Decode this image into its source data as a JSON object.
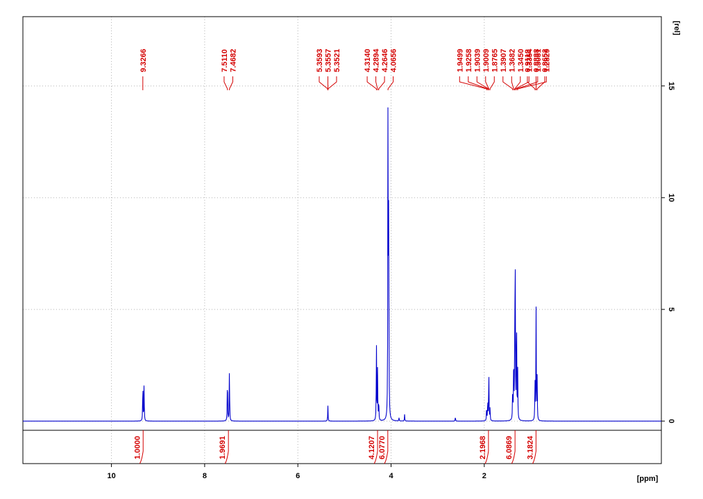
{
  "chart_data": {
    "type": "line",
    "title": "",
    "xlabel": "[ppm]",
    "ylabel": "[rel]",
    "x_axis_reversed": true,
    "xlim": [
      11.9,
      -1.8
    ],
    "ylim": [
      -1.9,
      18.1
    ],
    "x_ticks": [
      10,
      8,
      6,
      4,
      2
    ],
    "y_ticks": [
      0,
      5,
      10,
      15
    ],
    "grid": true,
    "colors": {
      "spectrum": "#0000cc",
      "annotation": "#d40000",
      "grid": "#b0b0b0",
      "axis": "#000000"
    },
    "series": [
      {
        "peaks": [
          {
            "ppm": 9.3266,
            "height": 1.8
          },
          {
            "ppm": 9.3,
            "height": 1.7
          },
          {
            "ppm": 7.511,
            "height": 2.2
          },
          {
            "ppm": 7.4682,
            "height": 2.4
          },
          {
            "ppm": 5.3557,
            "height": 0.7
          },
          {
            "ppm": 4.314,
            "height": 3.5
          },
          {
            "ppm": 4.2894,
            "height": 2.4
          },
          {
            "ppm": 4.2646,
            "height": 1.0
          },
          {
            "ppm": 4.0656,
            "height": 15.0
          },
          {
            "ppm": 4.05,
            "height": 10.5
          },
          {
            "ppm": 3.83,
            "height": 0.15
          },
          {
            "ppm": 3.71,
            "height": 0.3
          },
          {
            "ppm": 2.62,
            "height": 0.2
          },
          {
            "ppm": 1.9499,
            "height": 0.6
          },
          {
            "ppm": 1.9258,
            "height": 1.0
          },
          {
            "ppm": 1.9039,
            "height": 1.3
          },
          {
            "ppm": 1.9009,
            "height": 1.1
          },
          {
            "ppm": 1.8765,
            "height": 0.6
          },
          {
            "ppm": 1.3907,
            "height": 1.6
          },
          {
            "ppm": 1.3682,
            "height": 3.2
          },
          {
            "ppm": 1.345,
            "height": 4.6
          },
          {
            "ppm": 1.3354,
            "height": 6.0
          },
          {
            "ppm": 1.3081,
            "height": 5.6
          },
          {
            "ppm": 1.2829,
            "height": 2.2
          },
          {
            "ppm": 0.9118,
            "height": 1.8
          },
          {
            "ppm": 0.8888,
            "height": 5.2
          },
          {
            "ppm": 0.8652,
            "height": 1.9
          }
        ]
      }
    ],
    "peak_labels": [
      {
        "group": [
          9.3266
        ],
        "labels": [
          "9.3266"
        ]
      },
      {
        "group": [
          7.511,
          7.4682
        ],
        "labels": [
          "7.5110",
          "7.4682"
        ]
      },
      {
        "group": [
          5.3593,
          5.3557,
          5.3521
        ],
        "labels": [
          "5.3593",
          "5.3557",
          "5.3521"
        ]
      },
      {
        "group": [
          4.314,
          4.2894,
          4.2646,
          4.0656
        ],
        "labels": [
          "4.3140",
          "4.2894",
          "4.2646",
          "4.0656"
        ]
      },
      {
        "group": [
          1.9499,
          1.9258,
          1.9039,
          1.9009,
          1.8765,
          1.3907,
          1.3682,
          1.345,
          1.3354,
          1.3081,
          1.2829
        ],
        "labels": [
          "1.9499",
          "1.9258",
          "1.9039",
          "1.9009",
          "1.8765",
          "1.3907",
          "1.3682",
          "1.3450",
          "1.3354",
          "1.3081",
          "1.2829"
        ]
      },
      {
        "group": [
          0.9118,
          0.8888,
          0.8652
        ],
        "labels": [
          "0.9118",
          "0.8888",
          "0.8652"
        ]
      }
    ],
    "integrals": [
      {
        "ppm": 9.32,
        "value": "1.0000"
      },
      {
        "ppm": 7.49,
        "value": "1.9691"
      },
      {
        "ppm": 4.29,
        "value": "4.1207"
      },
      {
        "ppm": 4.07,
        "value": "6.0770"
      },
      {
        "ppm": 1.91,
        "value": "2.1968"
      },
      {
        "ppm": 1.34,
        "value": "6.0869"
      },
      {
        "ppm": 0.89,
        "value": "3.1824"
      }
    ]
  }
}
